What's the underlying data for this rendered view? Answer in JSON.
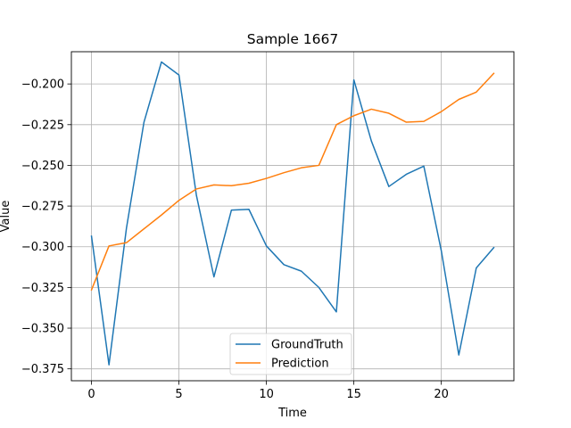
{
  "chart_data": {
    "type": "line",
    "title": "Sample 1667",
    "xlabel": "Time",
    "ylabel": "Value",
    "xlim": [
      -1.15,
      24.15
    ],
    "ylim": [
      -0.3823,
      -0.1802
    ],
    "xticks": [
      0,
      5,
      10,
      15,
      20
    ],
    "yticks": [
      -0.375,
      -0.35,
      -0.325,
      -0.3,
      -0.275,
      -0.25,
      -0.225,
      -0.2
    ],
    "xtick_labels": [
      "0",
      "5",
      "10",
      "15",
      "20"
    ],
    "ytick_labels": [
      "−0.375",
      "−0.350",
      "−0.325",
      "−0.300",
      "−0.275",
      "−0.250",
      "−0.225",
      "−0.200"
    ],
    "grid": true,
    "legend_position": "lower center",
    "x": [
      0,
      1,
      2,
      3,
      4,
      5,
      6,
      7,
      8,
      9,
      10,
      11,
      12,
      13,
      14,
      15,
      16,
      17,
      18,
      19,
      20,
      21,
      22,
      23
    ],
    "series": [
      {
        "name": "GroundTruth",
        "color": "#1f77b4",
        "values": [
          -0.2935,
          -0.3725,
          -0.2885,
          -0.2235,
          -0.1865,
          -0.1945,
          -0.2685,
          -0.3185,
          -0.2775,
          -0.277,
          -0.2995,
          -0.311,
          -0.315,
          -0.325,
          -0.34,
          -0.1975,
          -0.235,
          -0.263,
          -0.2555,
          -0.2505,
          -0.3025,
          -0.3665,
          -0.313,
          -0.3005
        ]
      },
      {
        "name": "Prediction",
        "color": "#ff7f0e",
        "values": [
          -0.3265,
          -0.2995,
          -0.2975,
          -0.289,
          -0.2805,
          -0.2715,
          -0.2645,
          -0.262,
          -0.2625,
          -0.261,
          -0.258,
          -0.2545,
          -0.2515,
          -0.25,
          -0.225,
          -0.2195,
          -0.2155,
          -0.218,
          -0.2235,
          -0.223,
          -0.217,
          -0.2095,
          -0.205,
          -0.1935
        ]
      }
    ]
  }
}
